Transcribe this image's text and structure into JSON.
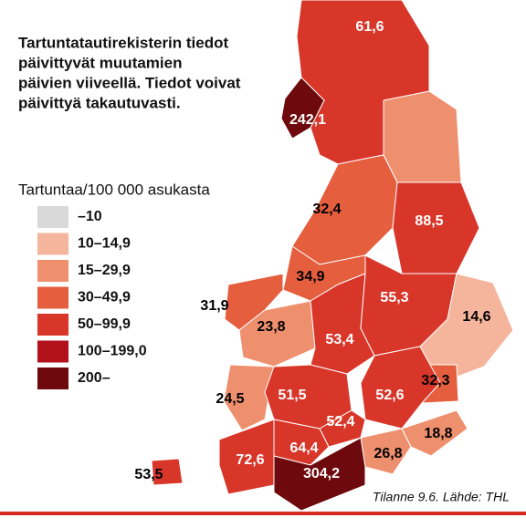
{
  "note": [
    "Tartuntatautirekisterin tiedot",
    "päivittyvät muutamien",
    "päivien viiveellä. Tiedot voivat",
    "päivittyä takautuvasti."
  ],
  "legend": {
    "title": "Tartuntaa/100 000 asukasta",
    "items": [
      {
        "label": "–10",
        "color": "#d9d9d9"
      },
      {
        "label": "10–14,9",
        "color": "#f5b59c"
      },
      {
        "label": "15–29,9",
        "color": "#ee8f6e"
      },
      {
        "label": "30–49,9",
        "color": "#e55e3e"
      },
      {
        "label": "50–99,9",
        "color": "#d9362a"
      },
      {
        "label": "100–199,0",
        "color": "#b3121c"
      },
      {
        "label": "200–",
        "color": "#6e0a0d"
      }
    ]
  },
  "regions": [
    {
      "value": 61.6,
      "label": "61,6",
      "color": "#d9362a"
    },
    {
      "value": 242.1,
      "label": "242,1",
      "color": "#6e0a0d"
    },
    {
      "value": 32.4,
      "label": "32,4",
      "color": "#e55e3e"
    },
    {
      "value": 88.5,
      "label": "88,5",
      "color": "#d9362a"
    },
    {
      "value": 34.9,
      "label": "34,9",
      "color": "#e55e3e"
    },
    {
      "value": 31.9,
      "label": "31,9",
      "color": "#e55e3e"
    },
    {
      "value": 23.8,
      "label": "23,8",
      "color": "#ee8f6e"
    },
    {
      "value": 53.4,
      "label": "53,4",
      "color": "#d9362a"
    },
    {
      "value": 55.3,
      "label": "55,3",
      "color": "#d9362a"
    },
    {
      "value": 14.6,
      "label": "14,6",
      "color": "#f5b59c"
    },
    {
      "value": 32.3,
      "label": "32,3",
      "color": "#e55e3e"
    },
    {
      "value": 52.6,
      "label": "52,6",
      "color": "#d9362a"
    },
    {
      "value": 24.5,
      "label": "24,5",
      "color": "#ee8f6e"
    },
    {
      "value": 51.5,
      "label": "51,5",
      "color": "#d9362a"
    },
    {
      "value": 52.4,
      "label": "52,4",
      "color": "#d9362a"
    },
    {
      "value": 18.8,
      "label": "18,8",
      "color": "#ee8f6e"
    },
    {
      "value": 26.8,
      "label": "26,8",
      "color": "#ee8f6e"
    },
    {
      "value": 64.4,
      "label": "64,4",
      "color": "#d9362a"
    },
    {
      "value": 72.6,
      "label": "72,6",
      "color": "#d9362a"
    },
    {
      "value": 304.2,
      "label": "304,2",
      "color": "#6e0a0d"
    },
    {
      "value": 53.5,
      "label": "53,5",
      "color": "#d9362a"
    }
  ],
  "source": "Tilanne 9.6. Lähde: THL"
}
